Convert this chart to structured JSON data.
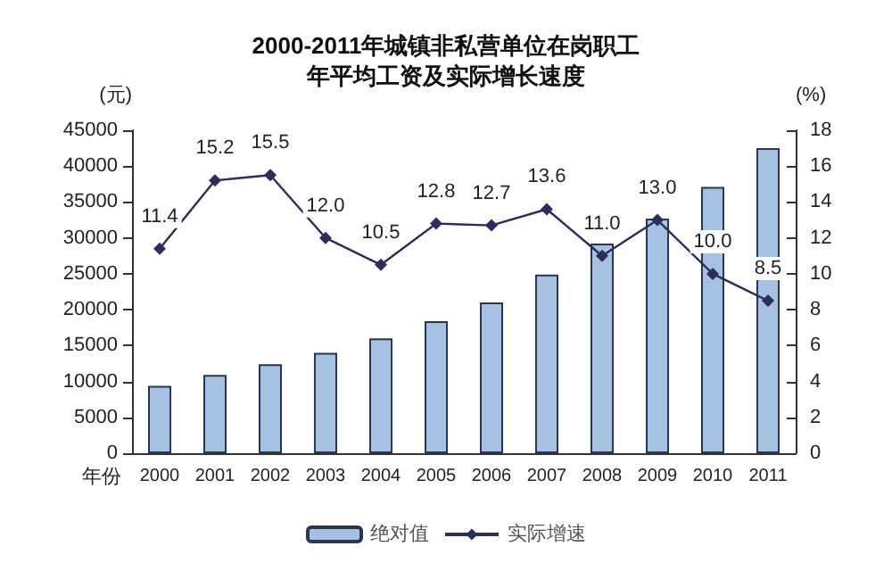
{
  "chart_data": {
    "type": "bar",
    "title": "2000-2011年城镇非私营单位在岗职工年平均工资及实际增长速度",
    "xlabel": "年份",
    "ylabel": "(元)",
    "y2label": "(%)",
    "categories": [
      "2000",
      "2001",
      "2002",
      "2003",
      "2004",
      "2005",
      "2006",
      "2007",
      "2008",
      "2009",
      "2010",
      "2011"
    ],
    "series": [
      {
        "name": "绝对值",
        "color": "#a7c1e3",
        "values": [
          9400,
          10900,
          12400,
          14000,
          16000,
          18400,
          21000,
          24900,
          29200,
          32700,
          37100,
          42500
        ]
      },
      {
        "name": "实际增速",
        "type": "line",
        "axis": "y2",
        "color": "#2b2d5c",
        "values": [
          11.4,
          15.2,
          15.5,
          12.0,
          10.5,
          12.8,
          12.7,
          13.6,
          11.0,
          13.0,
          10.0,
          8.5
        ],
        "value_labels": [
          "11.4",
          "15.2",
          "15.5",
          "12.0",
          "10.5",
          "12.8",
          "12.7",
          "13.6",
          "11.0",
          "13.0",
          "10.0",
          "8.5"
        ]
      }
    ],
    "ylim": [
      0,
      45000
    ],
    "yticks": [
      0,
      5000,
      10000,
      15000,
      20000,
      25000,
      30000,
      35000,
      40000,
      45000
    ],
    "y2lim": [
      0,
      18
    ],
    "y2ticks": [
      0,
      2,
      4,
      6,
      8,
      10,
      12,
      14,
      16,
      18
    ],
    "grid": false,
    "legend": "bottom",
    "marker": "diamond",
    "line_style": "solid"
  }
}
